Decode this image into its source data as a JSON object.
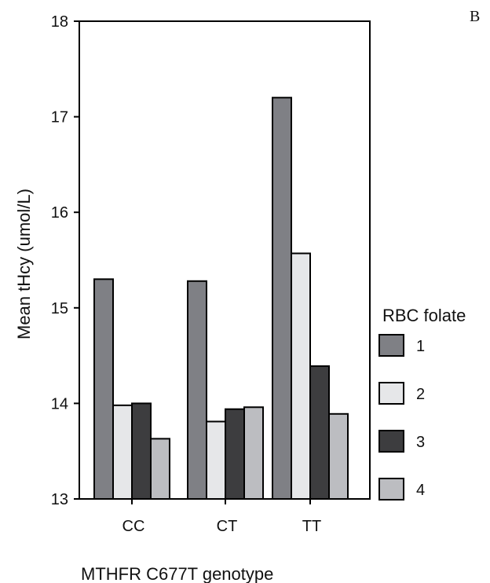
{
  "panel_label": "B",
  "chart_data": {
    "type": "bar",
    "title": "",
    "xlabel": "MTHFR C677T genotype",
    "ylabel": "Mean tHcy (umol/L)",
    "ylim": [
      13,
      18
    ],
    "yticks": [
      13,
      14,
      15,
      16,
      17,
      18
    ],
    "grid": false,
    "legend_title": "RBC folate",
    "legend_position": "right",
    "categories": [
      "CC",
      "CT",
      "TT"
    ],
    "series": [
      {
        "name": "1",
        "color": "#7f8085",
        "values": [
          15.3,
          15.28,
          17.2
        ]
      },
      {
        "name": "2",
        "color": "#e6e7e9",
        "values": [
          13.98,
          13.81,
          15.57
        ]
      },
      {
        "name": "3",
        "color": "#3d3d3f",
        "values": [
          14.0,
          13.94,
          14.39
        ]
      },
      {
        "name": "4",
        "color": "#bcbdc1",
        "values": [
          13.63,
          13.96,
          13.89
        ]
      }
    ]
  }
}
